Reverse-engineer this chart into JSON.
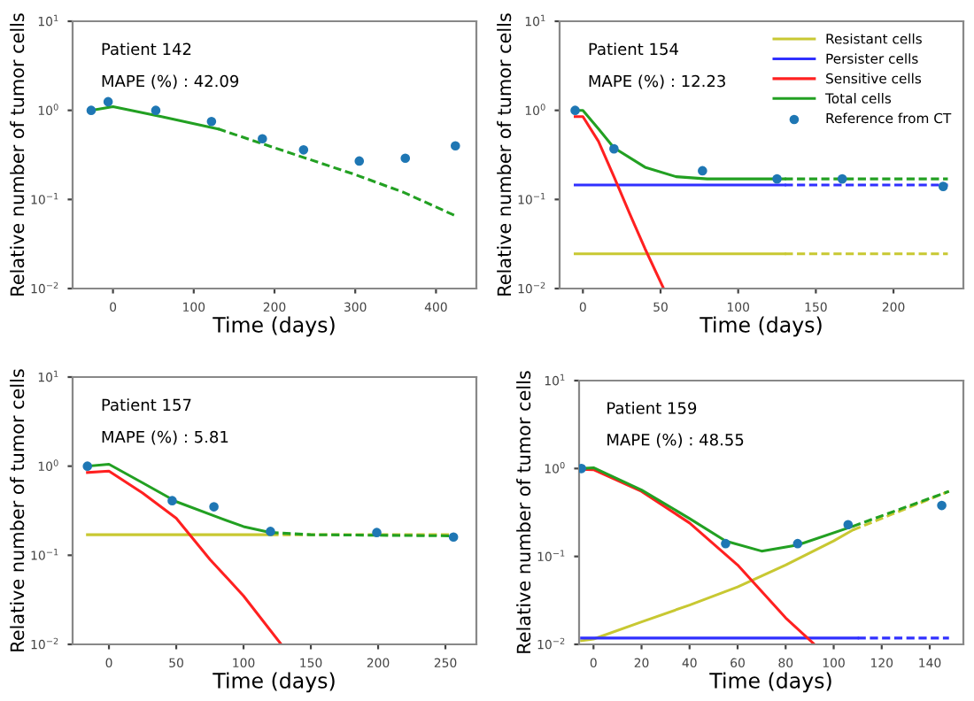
{
  "chart_data": [
    {
      "type": "line",
      "xlabel": "Time (days)",
      "ylabel": "Relative number of tumor cells",
      "annotations": [
        "Patient 142",
        "MAPE (%) : 42.09"
      ],
      "log": "y",
      "grid": false,
      "xlim": [
        -50,
        450
      ],
      "xticks": [
        0,
        100,
        200,
        300,
        400
      ],
      "ylim": [
        0.01,
        10
      ],
      "yticks": [
        {
          "value": 10,
          "label": "10$^{1}$"
        },
        {
          "value": 1,
          "label": "10$^{0}$"
        },
        {
          "value": 0.1,
          "label": "10$^{−1}$"
        },
        {
          "value": 0.01,
          "label": "10$^{−2}$"
        }
      ],
      "series": [
        {
          "type": "line",
          "color": "#22a022",
          "line_style": "solid",
          "marker": "none",
          "x": [
            -27,
            0,
            60,
            130
          ],
          "values": [
            1.0,
            1.1,
            0.85,
            0.62
          ]
        },
        {
          "type": "line",
          "color": "#22a022",
          "line_style": "dashed",
          "marker": "none",
          "x": [
            130,
            200,
            300,
            360,
            425
          ],
          "values": [
            0.62,
            0.38,
            0.19,
            0.12,
            0.065
          ]
        },
        {
          "type": "scatter",
          "color": "#1f77b4",
          "marker": "circle",
          "x": [
            -27,
            -6,
            53,
            122,
            185,
            236,
            305,
            362,
            424
          ],
          "values": [
            1.0,
            1.25,
            1.0,
            0.75,
            0.48,
            0.36,
            0.27,
            0.29,
            0.4
          ]
        }
      ]
    },
    {
      "type": "line",
      "xlabel": "Time (days)",
      "ylabel": "Relative number of tumor cells",
      "annotations": [
        "Patient 154",
        "MAPE (%) : 12.23"
      ],
      "log": "y",
      "grid": false,
      "legend": "top right",
      "xlim": [
        -15,
        245
      ],
      "xticks": [
        0,
        50,
        100,
        150,
        200
      ],
      "ylim": [
        0.01,
        10
      ],
      "yticks": [
        {
          "value": 10,
          "label": "10$^{1}$"
        },
        {
          "value": 1,
          "label": "10$^{0}$"
        },
        {
          "value": 0.1,
          "label": "10$^{−1}$"
        },
        {
          "value": 0.01,
          "label": "10$^{−2}$"
        }
      ],
      "series": [
        {
          "type": "line",
          "name": "Resistant cells",
          "color": "#c8c832",
          "line_style": "solid",
          "marker": "none",
          "x": [
            -5,
            130
          ],
          "values": [
            0.0245,
            0.0245
          ]
        },
        {
          "type": "line",
          "color": "#c8c832",
          "line_style": "dashed",
          "marker": "none",
          "x": [
            130,
            235
          ],
          "values": [
            0.0245,
            0.0245
          ]
        },
        {
          "type": "line",
          "name": "Persister cells",
          "color": "#3030ff",
          "line_style": "solid",
          "marker": "none",
          "x": [
            -5,
            130
          ],
          "values": [
            0.145,
            0.145
          ]
        },
        {
          "type": "line",
          "color": "#3030ff",
          "line_style": "dashed",
          "marker": "none",
          "x": [
            130,
            235
          ],
          "values": [
            0.145,
            0.145
          ]
        },
        {
          "type": "line",
          "name": "Sensitive cells",
          "color": "#ff2020",
          "line_style": "solid",
          "marker": "none",
          "x": [
            -5,
            0,
            10,
            20,
            30,
            40,
            52
          ],
          "values": [
            0.85,
            0.85,
            0.45,
            0.18,
            0.07,
            0.028,
            0.01
          ]
        },
        {
          "type": "line",
          "name": "Total cells",
          "color": "#22a022",
          "line_style": "solid",
          "marker": "none",
          "x": [
            -5,
            0,
            10,
            20,
            40,
            60,
            80,
            130
          ],
          "values": [
            1.0,
            1.0,
            0.62,
            0.38,
            0.23,
            0.18,
            0.17,
            0.17
          ]
        },
        {
          "type": "line",
          "color": "#22a022",
          "line_style": "dashed",
          "marker": "none",
          "x": [
            130,
            235
          ],
          "values": [
            0.17,
            0.17
          ]
        },
        {
          "type": "scatter",
          "name": "Reference from CT",
          "color": "#1f77b4",
          "marker": "circle",
          "x": [
            -5,
            20,
            77,
            125,
            167,
            232
          ],
          "values": [
            1.0,
            0.37,
            0.21,
            0.17,
            0.17,
            0.14
          ]
        }
      ]
    },
    {
      "type": "line",
      "xlabel": "Time (days)",
      "ylabel": "Relative number of tumor cells",
      "annotations": [
        "Patient 157",
        "MAPE (%) : 5.81"
      ],
      "log": "y",
      "grid": false,
      "xlim": [
        -27,
        273
      ],
      "xticks": [
        0,
        50,
        100,
        150,
        200,
        250
      ],
      "ylim": [
        0.01,
        10
      ],
      "yticks": [
        {
          "value": 10,
          "label": "10$^{1}$"
        },
        {
          "value": 1,
          "label": "10$^{0}$"
        },
        {
          "value": 0.1,
          "label": "10$^{−1}$"
        },
        {
          "value": 0.01,
          "label": "10$^{−2}$"
        }
      ],
      "series": [
        {
          "type": "line",
          "color": "#c8c832",
          "line_style": "solid",
          "marker": "none",
          "x": [
            -16,
            120
          ],
          "values": [
            0.17,
            0.17
          ]
        },
        {
          "type": "line",
          "color": "#c8c832",
          "line_style": "dashed",
          "marker": "none",
          "x": [
            120,
            255
          ],
          "values": [
            0.17,
            0.17
          ]
        },
        {
          "type": "line",
          "color": "#ff2020",
          "line_style": "solid",
          "marker": "none",
          "x": [
            -16,
            0,
            25,
            50,
            75,
            100,
            128
          ],
          "values": [
            0.85,
            0.88,
            0.5,
            0.26,
            0.09,
            0.035,
            0.01
          ]
        },
        {
          "type": "line",
          "color": "#22a022",
          "line_style": "solid",
          "marker": "none",
          "x": [
            -16,
            0,
            25,
            50,
            80,
            100,
            120
          ],
          "values": [
            1.0,
            1.05,
            0.65,
            0.4,
            0.27,
            0.21,
            0.18
          ]
        },
        {
          "type": "line",
          "color": "#22a022",
          "line_style": "dashed",
          "marker": "none",
          "x": [
            120,
            150,
            255
          ],
          "values": [
            0.18,
            0.17,
            0.165
          ]
        },
        {
          "type": "scatter",
          "color": "#1f77b4",
          "marker": "circle",
          "x": [
            -16,
            47,
            78,
            120,
            199,
            256
          ],
          "values": [
            1.0,
            0.41,
            0.35,
            0.185,
            0.18,
            0.16
          ]
        }
      ]
    },
    {
      "type": "line",
      "xlabel": "Time (days)",
      "ylabel": "Relative number of tumor cells",
      "annotations": [
        "Patient 159",
        "MAPE (%) : 48.55"
      ],
      "log": "y",
      "grid": false,
      "xlim": [
        -6,
        154
      ],
      "xticks": [
        0,
        20,
        40,
        60,
        80,
        100,
        120,
        140
      ],
      "ylim": [
        0.01,
        10
      ],
      "yticks": [
        {
          "value": 10,
          "label": "10$^{1}$"
        },
        {
          "value": 1,
          "label": "10$^{0}$"
        },
        {
          "value": 0.1,
          "label": "10$^{−1}$"
        },
        {
          "value": 0.01,
          "label": "10$^{−2}$"
        }
      ],
      "series": [
        {
          "type": "line",
          "color": "#c8c832",
          "line_style": "solid",
          "marker": "none",
          "x": [
            -5,
            0,
            20,
            40,
            60,
            80,
            100,
            108
          ],
          "values": [
            0.011,
            0.0115,
            0.018,
            0.028,
            0.045,
            0.08,
            0.15,
            0.2
          ]
        },
        {
          "type": "line",
          "color": "#c8c832",
          "line_style": "dashed",
          "marker": "none",
          "x": [
            108,
            148
          ],
          "values": [
            0.2,
            0.55
          ]
        },
        {
          "type": "line",
          "color": "#3030ff",
          "line_style": "solid",
          "marker": "none",
          "x": [
            -5,
            110
          ],
          "values": [
            0.0118,
            0.0118
          ]
        },
        {
          "type": "line",
          "color": "#3030ff",
          "line_style": "dashed",
          "marker": "none",
          "x": [
            110,
            148
          ],
          "values": [
            0.0118,
            0.0118
          ]
        },
        {
          "type": "line",
          "color": "#ff2020",
          "line_style": "solid",
          "marker": "none",
          "x": [
            -5,
            0,
            20,
            40,
            60,
            80,
            92
          ],
          "values": [
            0.98,
            0.97,
            0.55,
            0.24,
            0.08,
            0.02,
            0.01
          ]
        },
        {
          "type": "line",
          "color": "#22a022",
          "line_style": "solid",
          "marker": "none",
          "x": [
            -5,
            0,
            20,
            40,
            55,
            70,
            85,
            108
          ],
          "values": [
            1.0,
            1.02,
            0.57,
            0.27,
            0.15,
            0.115,
            0.135,
            0.22
          ]
        },
        {
          "type": "line",
          "color": "#22a022",
          "line_style": "dashed",
          "marker": "none",
          "x": [
            108,
            148
          ],
          "values": [
            0.22,
            0.55
          ]
        },
        {
          "type": "scatter",
          "color": "#1f77b4",
          "marker": "circle",
          "x": [
            -5,
            55,
            85,
            106,
            145
          ],
          "values": [
            1.0,
            0.14,
            0.14,
            0.23,
            0.38
          ]
        }
      ]
    }
  ]
}
